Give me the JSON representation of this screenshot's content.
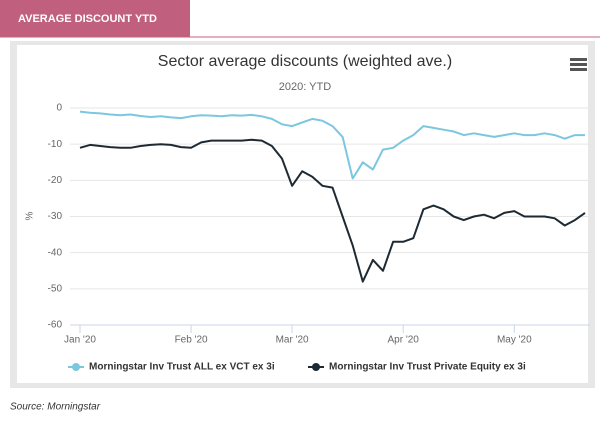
{
  "header": {
    "title": "AVERAGE DISCOUNT YTD"
  },
  "source": "Source: Morningstar",
  "chart_data": {
    "type": "line",
    "title": "Sector average discounts (weighted ave.)",
    "subtitle": "2020: YTD",
    "ylabel": "%",
    "categories": [
      "Jan '20",
      null,
      null,
      null,
      null,
      null,
      null,
      null,
      null,
      null,
      null,
      "Feb '20",
      null,
      null,
      null,
      null,
      null,
      null,
      null,
      null,
      null,
      "Mar '20",
      null,
      null,
      null,
      null,
      null,
      null,
      null,
      null,
      null,
      null,
      "Apr '20",
      null,
      null,
      null,
      null,
      null,
      null,
      null,
      null,
      null,
      null,
      "May '20",
      null,
      null,
      null,
      null,
      null,
      null,
      null
    ],
    "series": [
      {
        "name": "Morningstar Inv Trust ALL ex VCT ex 3i",
        "color": "#7cc7e0",
        "values": [
          -1,
          -1.3,
          -1.5,
          -1.8,
          -2,
          -1.8,
          -2.2,
          -2.5,
          -2.3,
          -2.6,
          -2.8,
          -2.3,
          -2,
          -2.1,
          -2.3,
          -2,
          -2.1,
          -1.9,
          -2.3,
          -3,
          -4.5,
          -5,
          -4,
          -3,
          -3.5,
          -5,
          -8,
          -19.5,
          -15,
          -17,
          -11.5,
          -11,
          -9,
          -7.5,
          -5,
          -5.5,
          -6,
          -6.5,
          -7.5,
          -7,
          -7.5,
          -8,
          -7.5,
          -7,
          -7.5,
          -7.5,
          -7,
          -7.5,
          -8.5,
          -7.5,
          -7.5
        ]
      },
      {
        "name": "Morningstar Inv Trust Private Equity ex 3i",
        "color": "#1e2a33",
        "values": [
          -11,
          -10.2,
          -10.5,
          -10.8,
          -11,
          -11,
          -10.5,
          -10.2,
          -10,
          -10.2,
          -10.8,
          -11,
          -9.5,
          -9,
          -9,
          -9,
          -9,
          -8.8,
          -9,
          -10.5,
          -14,
          -21.5,
          -17.5,
          -19,
          -21.5,
          -22,
          -30,
          -38,
          -48,
          -42,
          -45,
          -37,
          -37,
          -36,
          -28,
          -27,
          -28,
          -30,
          -31,
          -30,
          -29.5,
          -30.5,
          -29,
          -28.5,
          -30,
          -30,
          -30,
          -30.5,
          -32.5,
          -31,
          -29
        ]
      }
    ],
    "ylim": [
      -60,
      0
    ],
    "yticks": [
      0,
      -10,
      -20,
      -30,
      -40,
      -50,
      -60
    ],
    "grid": true,
    "legend": "bottom"
  }
}
